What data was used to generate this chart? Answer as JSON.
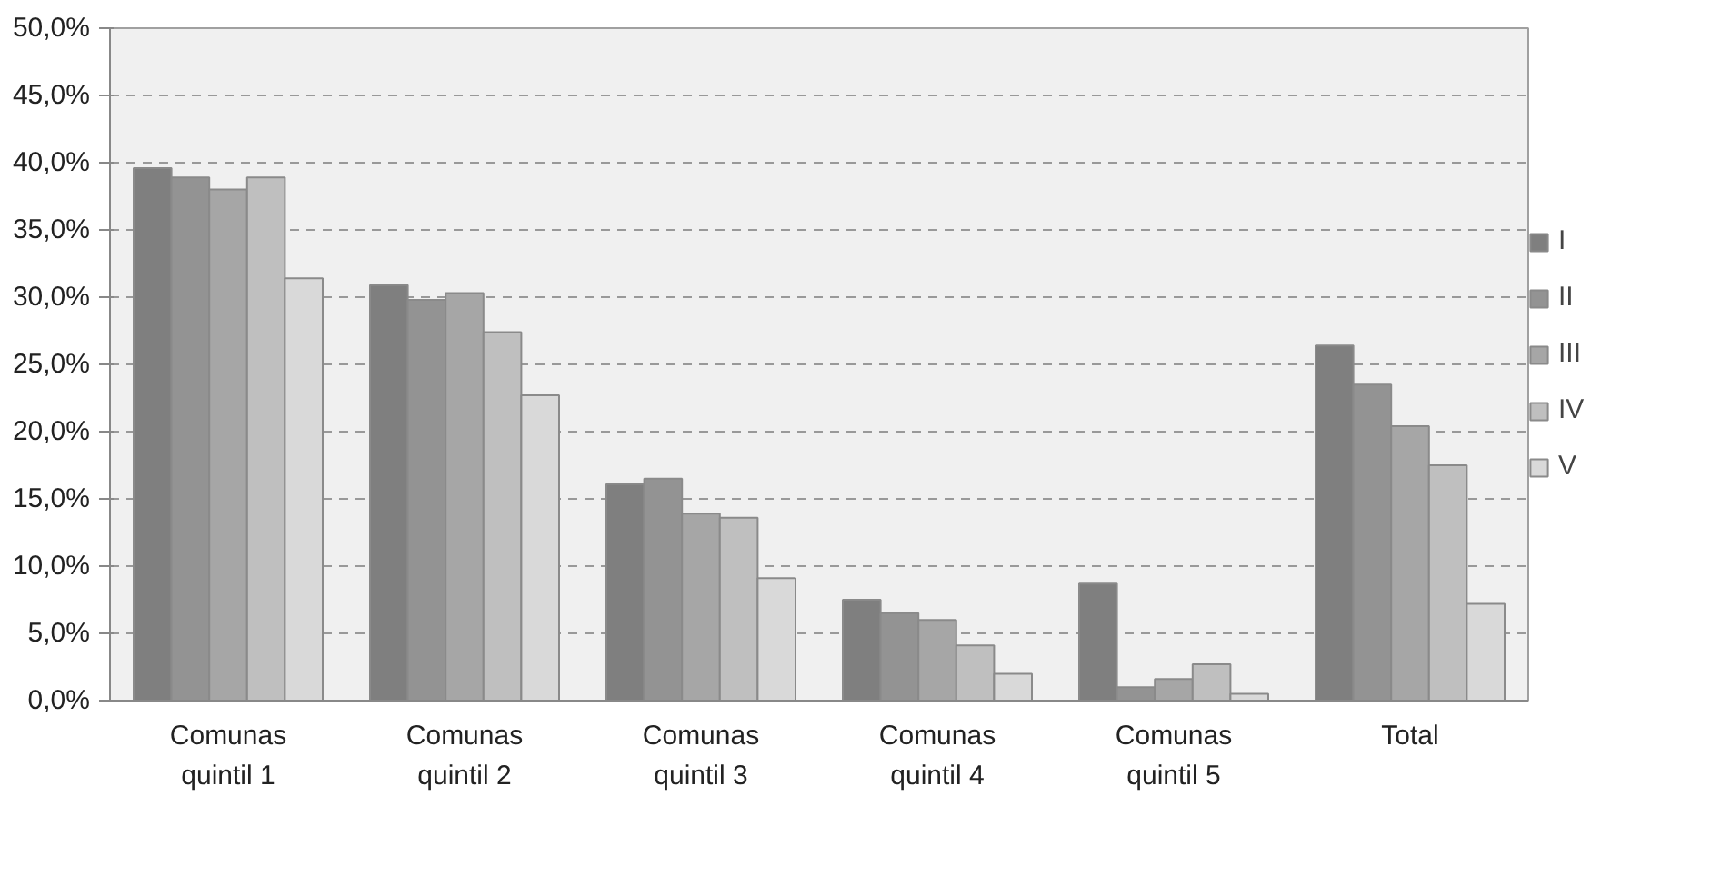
{
  "chart_data": {
    "type": "bar",
    "categories": [
      "Comunas\nquintil 1",
      "Comunas\nquintil 2",
      "Comunas\nquintil 3",
      "Comunas\nquintil 4",
      "Comunas\nquintil 5",
      "Total"
    ],
    "series": [
      {
        "name": "I",
        "color": "#7f7f7f",
        "values": [
          39.6,
          30.9,
          16.1,
          7.5,
          8.7,
          26.4
        ]
      },
      {
        "name": "II",
        "color": "#939393",
        "values": [
          38.9,
          29.8,
          16.5,
          6.5,
          1.0,
          23.5
        ]
      },
      {
        "name": "III",
        "color": "#a6a6a6",
        "values": [
          38.0,
          30.3,
          13.9,
          6.0,
          1.6,
          20.4
        ]
      },
      {
        "name": "IV",
        "color": "#bfbfbf",
        "values": [
          38.9,
          27.4,
          13.6,
          4.1,
          2.7,
          17.5
        ]
      },
      {
        "name": "V",
        "color": "#d9d9d9",
        "values": [
          31.4,
          22.7,
          9.1,
          2.0,
          0.5,
          7.2
        ]
      }
    ],
    "ylim": [
      0,
      50
    ],
    "yticks": [
      {
        "value": 0,
        "label": "0,0%"
      },
      {
        "value": 5,
        "label": "5,0%"
      },
      {
        "value": 10,
        "label": "10,0%"
      },
      {
        "value": 15,
        "label": "15,0%"
      },
      {
        "value": 20,
        "label": "20,0%"
      },
      {
        "value": 25,
        "label": "25,0%"
      },
      {
        "value": 30,
        "label": "30,0%"
      },
      {
        "value": 35,
        "label": "35,0%"
      },
      {
        "value": 40,
        "label": "40,0%"
      },
      {
        "value": 45,
        "label": "45,0%"
      },
      {
        "value": 50,
        "label": "50,0%"
      }
    ],
    "grid": "y",
    "legend": "right"
  }
}
